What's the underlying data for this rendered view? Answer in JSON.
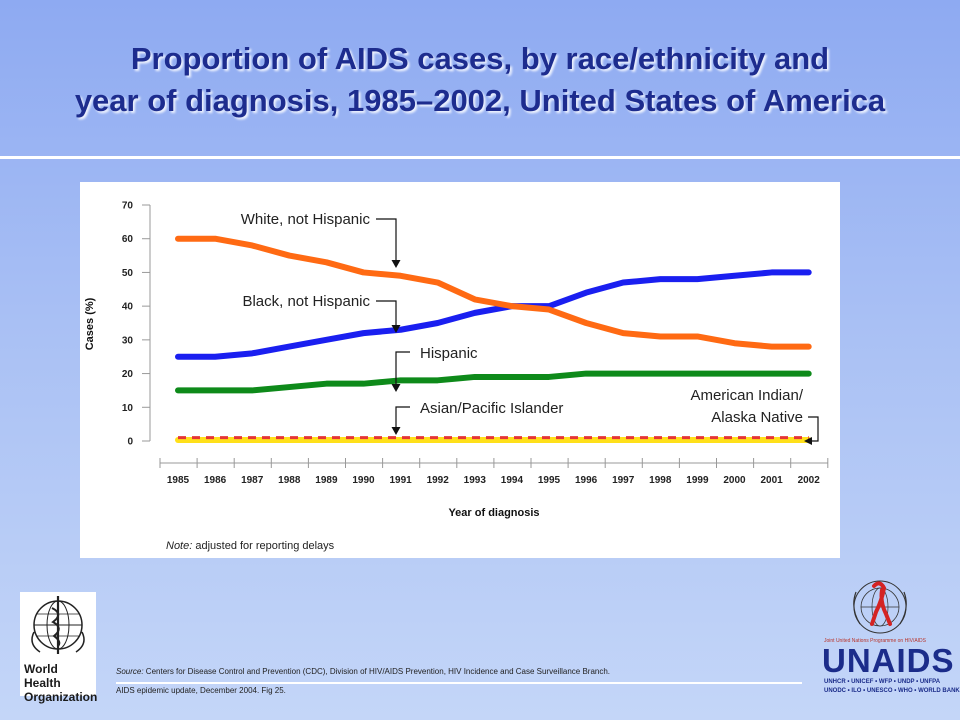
{
  "title": {
    "line1": "Proportion of AIDS cases, by race/ethnicity and",
    "line2": "year of diagnosis, 1985–2002, United States of America"
  },
  "chart_data": {
    "type": "line",
    "x": [
      "1985",
      "1986",
      "1987",
      "1988",
      "1989",
      "1990",
      "1991",
      "1992",
      "1993",
      "1994",
      "1995",
      "1996",
      "1997",
      "1998",
      "1999",
      "2000",
      "2001",
      "2002"
    ],
    "series": [
      {
        "name": "White, not Hispanic",
        "color": "#ff6a13",
        "dashed": false,
        "values": [
          60,
          60,
          58,
          55,
          53,
          50,
          49,
          47,
          42,
          40,
          39,
          35,
          32,
          31,
          31,
          29,
          28,
          28
        ]
      },
      {
        "name": "Black, not Hispanic",
        "color": "#1a1ff0",
        "dashed": false,
        "values": [
          25,
          25,
          26,
          28,
          30,
          32,
          33,
          35,
          38,
          40,
          40,
          44,
          47,
          48,
          48,
          49,
          50,
          50
        ]
      },
      {
        "name": "Hispanic",
        "color": "#0e8a1a",
        "dashed": false,
        "values": [
          15,
          15,
          15,
          16,
          17,
          17,
          18,
          18,
          19,
          19,
          19,
          20,
          20,
          20,
          20,
          20,
          20,
          20
        ]
      },
      {
        "name": "Asian/Pacific Islander",
        "color": "#e53535",
        "dashed": true,
        "values": [
          1,
          1,
          1,
          1,
          1,
          1,
          1,
          1,
          1,
          1,
          1,
          1,
          1,
          1,
          1,
          1,
          1,
          1
        ]
      },
      {
        "name": "American Indian/ Alaska Native",
        "color": "#ffe01a",
        "dashed": false,
        "values": [
          0.3,
          0.3,
          0.3,
          0.3,
          0.3,
          0.3,
          0.3,
          0.3,
          0.3,
          0.3,
          0.3,
          0.3,
          0.3,
          0.3,
          0.3,
          0.3,
          0.3,
          0.3
        ]
      }
    ],
    "ylabel": "Cases (%)",
    "xlabel": "Year of diagnosis",
    "ylim": [
      0,
      70
    ],
    "yticks": [
      0,
      10,
      20,
      30,
      40,
      50,
      60,
      70
    ],
    "labels": {
      "white": "White, not Hispanic",
      "black": "Black, not Hispanic",
      "hispanic": "Hispanic",
      "asian": "Asian/Pacific Islander",
      "native_line1": "American Indian/",
      "native_line2": "Alaska Native"
    },
    "note_prefix": "Note:",
    "note_text": " adjusted for reporting delays"
  },
  "footer": {
    "source_label": "Source:",
    "source_text": " Centers for Disease Control and Prevention (CDC), Division of HIV/AIDS Prevention, HIV Incidence and Case Surveillance Branch.",
    "update_text": "AIDS epidemic update, December 2004.  Fig 25."
  },
  "who": {
    "name_line1": "World Health",
    "name_line2": "Organization"
  },
  "unaids": {
    "tagline": "Joint United Nations Programme on HIV/AIDS",
    "wordmark": "UNAIDS",
    "sponsors1": "UNHCR • UNICEF • WFP • UNDP • UNFPA",
    "sponsors2": "UNODC • ILO • UNESCO • WHO • WORLD BANK"
  }
}
